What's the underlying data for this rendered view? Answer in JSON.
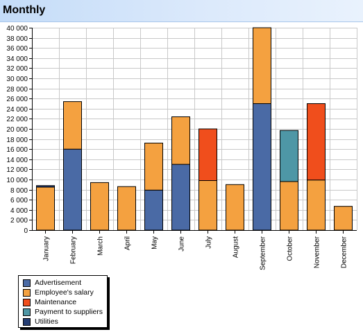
{
  "header": {
    "title": "Monthly"
  },
  "chart_data": {
    "type": "bar",
    "stacked": true,
    "title": "Monthly",
    "xlabel": "",
    "ylabel": "",
    "ylim": [
      0,
      40000
    ],
    "yticks": [
      0,
      2000,
      4000,
      6000,
      8000,
      10000,
      12000,
      14000,
      16000,
      18000,
      20000,
      22000,
      24000,
      26000,
      28000,
      30000,
      32000,
      34000,
      36000,
      38000,
      40000
    ],
    "ytick_labels": [
      "0",
      "2 000",
      "4 000",
      "6 000",
      "8 000",
      "10 000",
      "12 000",
      "14 000",
      "16 000",
      "18 000",
      "20 000",
      "22 000",
      "24 000",
      "26 000",
      "28 000",
      "30 000",
      "32 000",
      "34 000",
      "36 000",
      "38 000",
      "40 000"
    ],
    "grid": true,
    "legend_position": "bottom-left",
    "categories": [
      "January",
      "February",
      "March",
      "April",
      "May",
      "June",
      "July",
      "August",
      "September",
      "October",
      "November",
      "December"
    ],
    "series": [
      {
        "name": "Advertisement",
        "color": "#4a6aa5",
        "values": [
          0,
          16000,
          0,
          0,
          7900,
          13000,
          0,
          0,
          25000,
          0,
          0,
          0
        ]
      },
      {
        "name": "Employee's salary",
        "color": "#f4a140",
        "values": [
          8500,
          9400,
          9400,
          8600,
          9300,
          9400,
          9800,
          9000,
          15000,
          9600,
          9900,
          4700
        ]
      },
      {
        "name": "Maintenance",
        "color": "#f04e1c",
        "values": [
          0,
          0,
          0,
          0,
          0,
          0,
          10200,
          0,
          0,
          0,
          15100,
          0
        ]
      },
      {
        "name": "Payment to suppliers",
        "color": "#4e97a6",
        "values": [
          0,
          0,
          0,
          0,
          0,
          0,
          0,
          0,
          0,
          10100,
          0,
          0
        ]
      },
      {
        "name": "Utilities",
        "color": "#243d73",
        "values": [
          300,
          0,
          0,
          0,
          0,
          0,
          0,
          0,
          0,
          0,
          0,
          0
        ]
      }
    ]
  }
}
